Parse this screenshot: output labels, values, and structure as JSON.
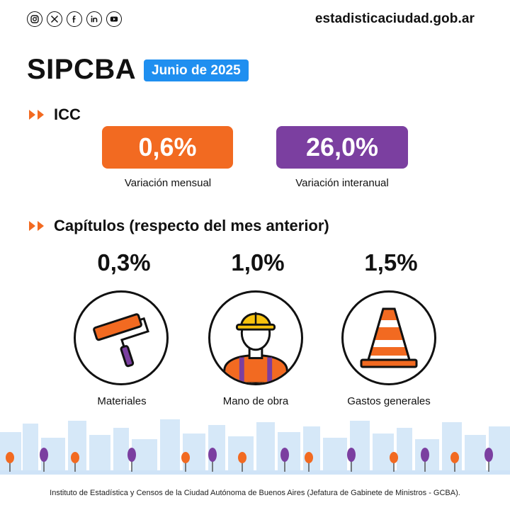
{
  "header": {
    "social_icons": [
      "instagram-icon",
      "x-icon",
      "facebook-icon",
      "linkedin-icon",
      "youtube-icon"
    ],
    "site_url": "estadisticaciudad.gob.ar"
  },
  "title": "SIPCBA",
  "date_badge": "Junio de 2025",
  "icc": {
    "heading": "ICC",
    "monthly": {
      "value": "0,6%",
      "label": "Variación mensual",
      "color": "#f26a21"
    },
    "yearly": {
      "value": "26,0%",
      "label": "Variación interanual",
      "color": "#7b3fa0"
    }
  },
  "chapters": {
    "heading": "Capítulos (respecto del mes anterior)",
    "items": [
      {
        "value": "0,3%",
        "label": "Materiales",
        "icon": "paint-roller-icon"
      },
      {
        "value": "1,0%",
        "label": "Mano de obra",
        "icon": "construction-worker-icon"
      },
      {
        "value": "1,5%",
        "label": "Gastos generales",
        "icon": "traffic-cone-icon"
      }
    ]
  },
  "colors": {
    "orange": "#f26a21",
    "purple": "#7b3fa0",
    "blue": "#1f8ff0",
    "skyline": "#cfe3f7"
  },
  "footer": "Instituto de Estadística y Censos de la Ciudad Autónoma de Buenos Aires (Jefatura de Gabinete de Ministros - GCBA)."
}
